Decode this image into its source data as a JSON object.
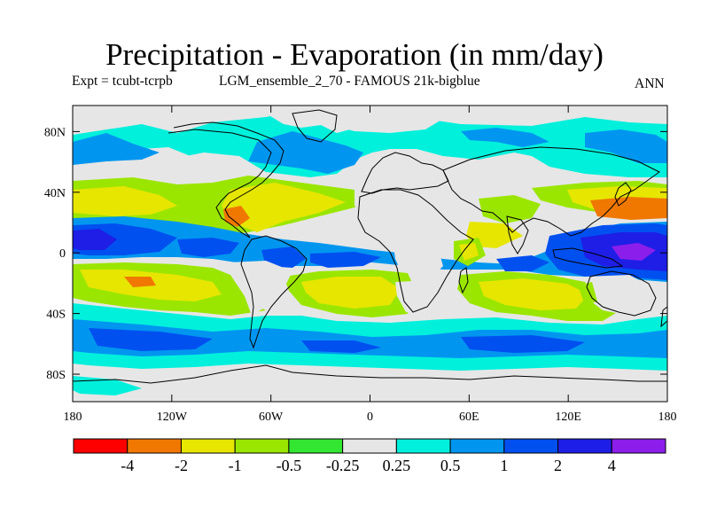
{
  "title": "Precipitation - Evaporation (in mm/day)",
  "subtitle_left": "Expt = tcubt-tcrpb",
  "subtitle_mid": "LGM_ensemble_2_70 - FAMOUS 21k-bigblue",
  "season": "ANN",
  "map": {
    "projection": "cylindrical equidistant",
    "lon_range": [
      -180,
      180
    ],
    "lat_range": [
      -90,
      90
    ],
    "y_ticks": [
      "80N",
      "40N",
      "0",
      "40S",
      "80S"
    ],
    "x_ticks": [
      "180",
      "120W",
      "60W",
      "0",
      "60E",
      "120E",
      "180"
    ]
  },
  "colorbar": {
    "colors": [
      "#ff0000",
      "#f07800",
      "#e6e600",
      "#9be600",
      "#32e632",
      "#e6e6e6",
      "#00f0dc",
      "#0096f0",
      "#0050f0",
      "#1e1ee6",
      "#8c1eeb"
    ],
    "labels": [
      "-4",
      "-2",
      "-1",
      "-0.5",
      "-0.25",
      "0.25",
      "0.5",
      "1",
      "2",
      "4"
    ]
  },
  "palette": {
    "neutral": "#e6e6e6",
    "cyan": "#00f0dc",
    "light_blue": "#0096f0",
    "blue": "#0050f0",
    "dark_blue": "#1e1ee6",
    "purple": "#8c1eeb",
    "green": "#32e632",
    "yellow_green": "#9be600",
    "yellow": "#e6e600",
    "orange": "#f07800",
    "red": "#ff0000"
  }
}
